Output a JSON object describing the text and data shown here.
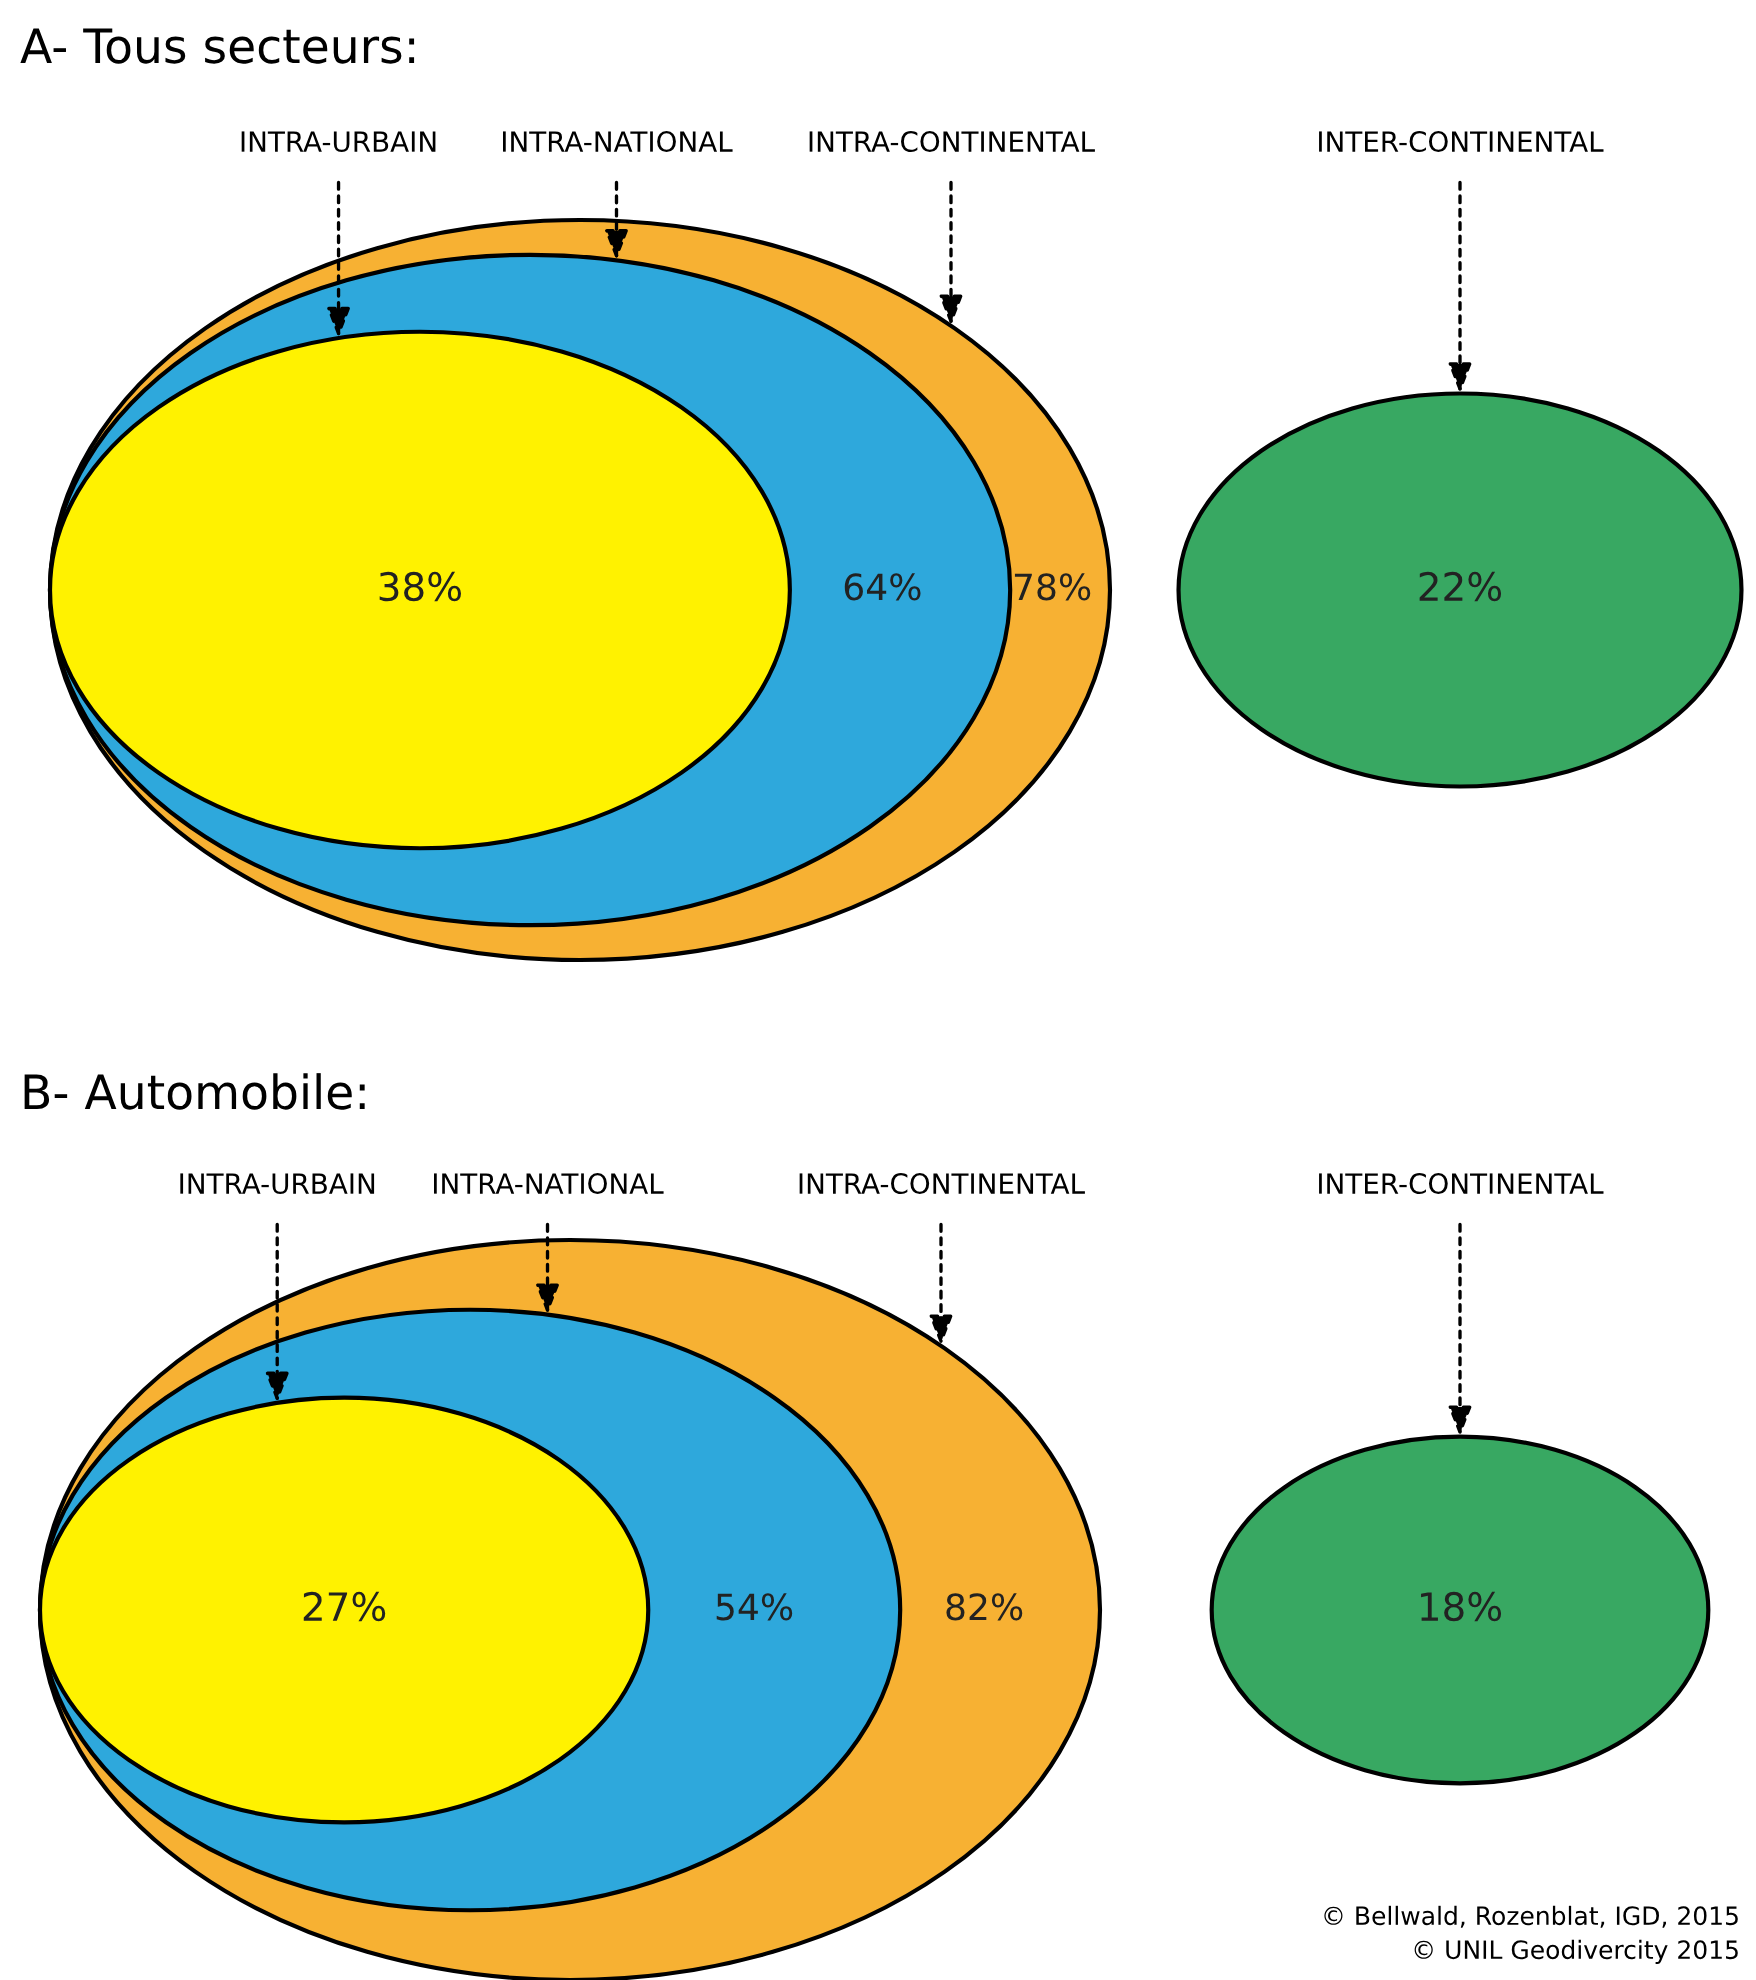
{
  "chart_data": [
    {
      "type": "other",
      "title": "A- Tous secteurs:",
      "categories": [
        "INTRA-URBAIN",
        "INTRA-NATIONAL",
        "INTRA-CONTINENTAL",
        "INTER-CONTINENTAL"
      ],
      "values": [
        38,
        64,
        78,
        22
      ],
      "value_labels": [
        "38%",
        "64%",
        "78%",
        "22%"
      ],
      "colors": [
        "#fff200",
        "#2ea8dc",
        "#f7b133",
        "#38a862"
      ]
    },
    {
      "type": "other",
      "title": "B- Automobile:",
      "categories": [
        "INTRA-URBAIN",
        "INTRA-NATIONAL",
        "INTRA-CONTINENTAL",
        "INTER-CONTINENTAL"
      ],
      "values": [
        27,
        54,
        82,
        18
      ],
      "value_labels": [
        "27%",
        "54%",
        "82%",
        "18%"
      ],
      "colors": [
        "#fff200",
        "#2ea8dc",
        "#f7b133",
        "#38a862"
      ],
      "annotations": [
        "© Bellwald, Rozenblat, IGD, 2015",
        "© UNIL Geodivercity 2015"
      ]
    }
  ]
}
